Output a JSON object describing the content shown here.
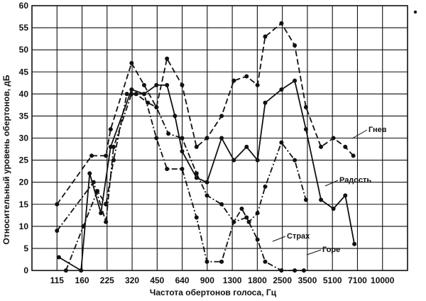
{
  "chart_data": {
    "type": "line",
    "xlabel": "Частота обертонов голоса, Гц",
    "ylabel": "Относительный уровень обертонов, дБ",
    "ylim": [
      0,
      60
    ],
    "yticks": [
      "0",
      "5",
      "10",
      "15",
      "20",
      "25",
      "30",
      "35",
      "40",
      "45",
      "50",
      "55",
      "60"
    ],
    "x_tick_labels": [
      "115",
      "160",
      "225",
      "320",
      "450",
      "640",
      "900",
      "1300",
      "1800",
      "2500",
      "3500",
      "5100",
      "7100",
      "10000"
    ],
    "x_scale": "log",
    "grid": true,
    "legend": "labels next to curves",
    "series": [
      {
        "name": "Гнев",
        "style": "dashed",
        "x": [
          115,
          185,
          225,
          240,
          320,
          380,
          450,
          520,
          640,
          780,
          900,
          1100,
          1300,
          1550,
          1800,
          2000,
          2500,
          3000,
          3500,
          4300,
          5100,
          6000,
          6700
        ],
        "y": [
          15,
          26,
          26,
          32,
          47,
          42,
          37,
          48,
          42,
          28,
          30,
          35,
          43,
          44,
          42,
          53,
          56,
          51,
          37,
          28,
          30,
          28,
          26
        ]
      },
      {
        "name": "Радость",
        "style": "solid",
        "x": [
          118,
          160,
          180,
          210,
          240,
          320,
          380,
          450,
          520,
          580,
          640,
          780,
          900,
          1100,
          1300,
          1550,
          1800,
          2000,
          2500,
          3000,
          3500,
          4300,
          5100,
          6000,
          6800
        ],
        "y": [
          3,
          0,
          22,
          13,
          28,
          41,
          40,
          42,
          42,
          35,
          27,
          21,
          20,
          30,
          25,
          28,
          25,
          38,
          41,
          43,
          32,
          16,
          14,
          17,
          6
        ]
      },
      {
        "name": "Страх",
        "style": "dash-dot",
        "x": [
          115,
          190,
          225,
          250,
          320,
          380,
          450,
          520,
          640,
          780,
          900,
          1100,
          1300,
          1550,
          1800,
          2000,
          2500,
          3000,
          3400
        ],
        "y": [
          9,
          20,
          11,
          28,
          40,
          40,
          30,
          23,
          23,
          12,
          2,
          2,
          11,
          12,
          7,
          2,
          0,
          0,
          0
        ]
      },
      {
        "name": "Горе",
        "style": "dash-dot",
        "x": [
          130,
          165,
          200,
          225,
          250,
          300,
          340,
          400,
          450,
          530,
          640,
          780,
          900,
          1100,
          1300,
          1450,
          1600,
          1800,
          2000,
          2500,
          3000,
          3500
        ],
        "y": [
          0,
          10,
          18,
          15,
          25,
          40,
          40,
          38,
          37,
          31,
          30,
          22,
          17,
          15,
          11,
          14,
          11,
          13,
          19,
          29,
          25,
          16
        ]
      }
    ]
  },
  "icons": [
    "bullet-dot-icon"
  ],
  "colors": {
    "ink": "#111111",
    "background": "#ffffff"
  }
}
